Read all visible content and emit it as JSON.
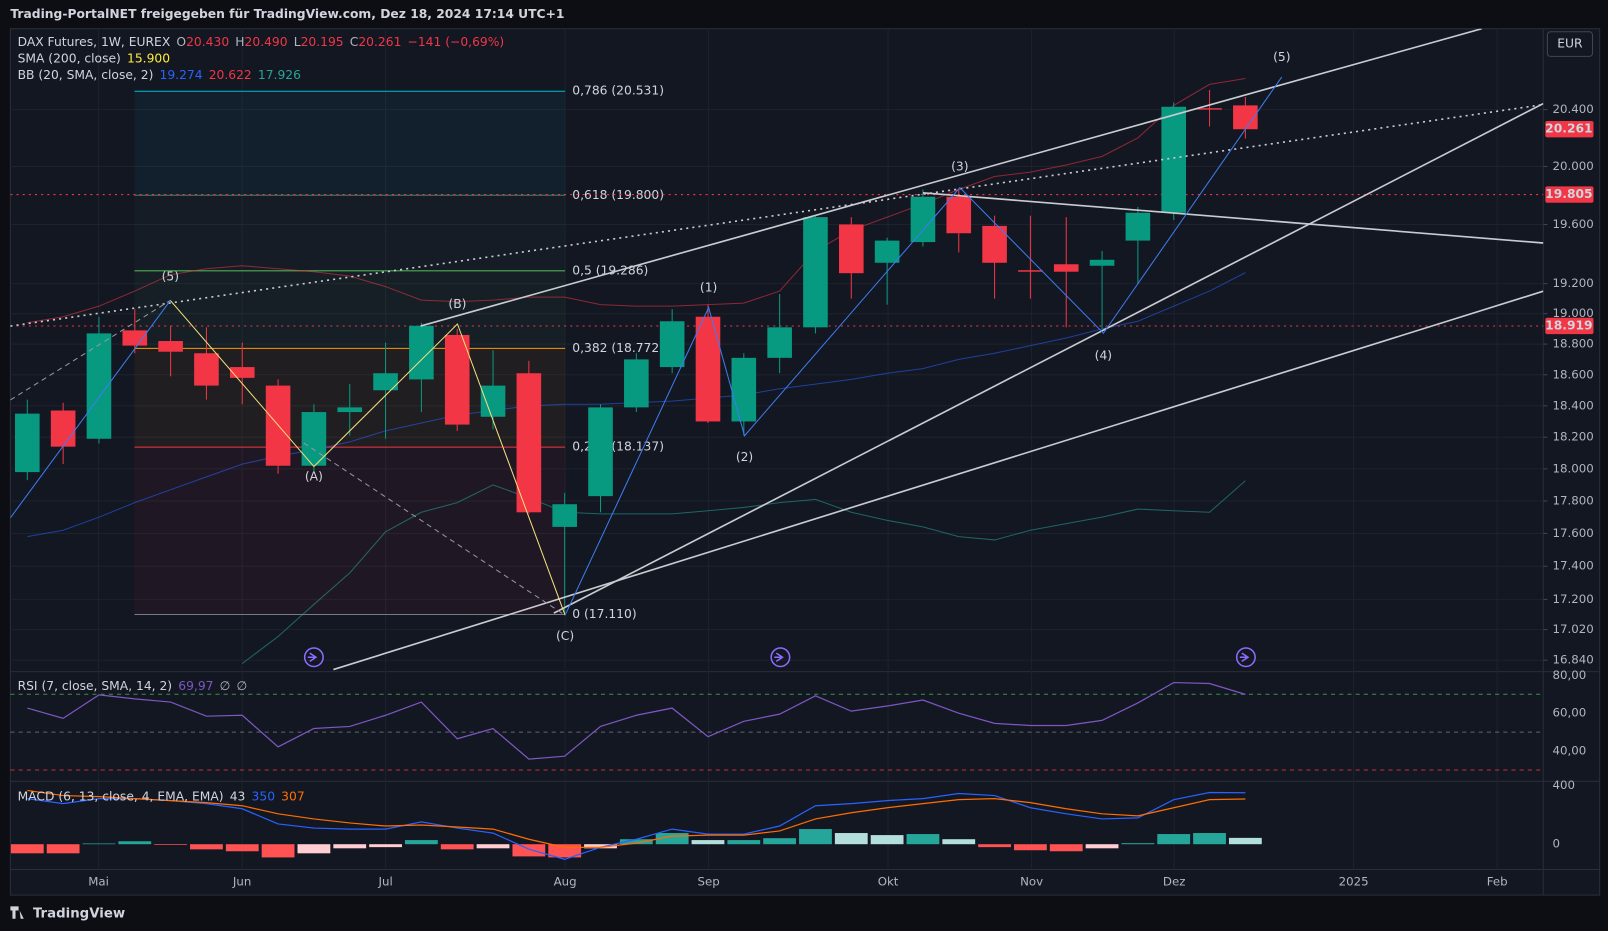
{
  "header": "Trading-PortalNET freigegeben für TradingView.com, Dez 18, 2024 17:14 UTC+1",
  "footer": "TradingView",
  "currency": "EUR",
  "chart_data": [
    {
      "type": "candlestick",
      "symbol": "DAX Futures, 1W, EUREX",
      "ohlc_keys": [
        "O",
        "H",
        "L",
        "C"
      ],
      "ohlc_labels": [
        "20.430",
        "20.490",
        "20.195",
        "20.261"
      ],
      "change": "−141 (−0,69%)",
      "up_color": "#089981",
      "down_color": "#f23645",
      "log_scale": true,
      "grid": true,
      "open": [
        17980,
        18370,
        18190,
        18890,
        18820,
        18740,
        18650,
        18530,
        18020,
        18360,
        18500,
        18570,
        18860,
        18330,
        18610,
        17640,
        17830,
        18390,
        18650,
        18980,
        18300,
        18710,
        18910,
        19600,
        19340,
        19480,
        19790,
        19590,
        19290,
        19330,
        19320,
        19490,
        19680,
        20410,
        20430
      ],
      "high": [
        18440,
        18420,
        18980,
        19030,
        18920,
        18910,
        18810,
        18570,
        18410,
        18540,
        18810,
        18940,
        18900,
        18760,
        18690,
        17850,
        18410,
        18740,
        19030,
        19060,
        18740,
        19130,
        19660,
        19650,
        19510,
        19840,
        19840,
        19660,
        19660,
        19650,
        19420,
        19720,
        20450,
        20540,
        20490
      ],
      "low": [
        17930,
        18030,
        18160,
        18740,
        18590,
        18440,
        18410,
        17970,
        17980,
        18210,
        18190,
        18360,
        18240,
        18250,
        17720,
        17110,
        17730,
        18360,
        18610,
        18290,
        18210,
        18610,
        18870,
        19100,
        19060,
        19450,
        19410,
        19100,
        19100,
        18910,
        18900,
        19200,
        19630,
        20280,
        20195
      ],
      "close": [
        18350,
        18140,
        18870,
        18790,
        18750,
        18530,
        18580,
        18020,
        18360,
        18390,
        18610,
        18920,
        18280,
        18530,
        17730,
        17780,
        18390,
        18700,
        18950,
        18300,
        18710,
        18910,
        19650,
        19270,
        19490,
        19790,
        19540,
        19340,
        19280,
        19280,
        19360,
        19680,
        20420,
        20400,
        20261
      ],
      "ylim": [
        16773,
        20953
      ],
      "yticks": [
        {
          "value": 20400,
          "label": "20.400"
        },
        {
          "value": 20000,
          "label": "20.000"
        },
        {
          "value": 19600,
          "label": "19.600"
        },
        {
          "value": 19200,
          "label": "19.200"
        },
        {
          "value": 19000,
          "label": "19.000"
        },
        {
          "value": 18800,
          "label": "18.800"
        },
        {
          "value": 18600,
          "label": "18.600"
        },
        {
          "value": 18400,
          "label": "18.400"
        },
        {
          "value": 18200,
          "label": "18.200"
        },
        {
          "value": 18000,
          "label": "18.000"
        },
        {
          "value": 17800,
          "label": "17.800"
        },
        {
          "value": 17600,
          "label": "17.600"
        },
        {
          "value": 17400,
          "label": "17.400"
        },
        {
          "value": 17200,
          "label": "17.200"
        },
        {
          "value": 17020,
          "label": "17.020"
        },
        {
          "value": 16840,
          "label": "16.840"
        }
      ],
      "xtick_labels": [
        "Mai",
        "Jun",
        "Jul",
        "Aug",
        "Sep",
        "Okt",
        "Nov",
        "Dez",
        "2025",
        "Feb"
      ],
      "sma": {
        "label": "SMA (200, close)",
        "value": {
          "value": 15900,
          "label": "15.900"
        },
        "color": "#ffeb3b"
      },
      "bb": {
        "label": "BB (20, SMA, close, 2)",
        "lines": [
          {
            "color": "#2962ff",
            "last_label": "19.274",
            "values": [
              17580,
              17620,
              17700,
              17790,
              17870,
              17950,
              18030,
              18080,
              18120,
              18170,
              18240,
              18290,
              18340,
              18370,
              18400,
              18410,
              18410,
              18420,
              18430,
              18450,
              18470,
              18510,
              18540,
              18570,
              18610,
              18640,
              18700,
              18740,
              18790,
              18840,
              18900,
              18950,
              19050,
              19150,
              19274
            ]
          },
          {
            "color": "#f23645",
            "last_label": "20.622",
            "values": [
              18940,
              18980,
              19050,
              19150,
              19260,
              19300,
              19320,
              19300,
              19280,
              19250,
              19180,
              19090,
              19080,
              19090,
              19110,
              19110,
              19060,
              19050,
              19050,
              19060,
              19070,
              19150,
              19420,
              19560,
              19650,
              19740,
              19840,
              19930,
              19960,
              20010,
              20070,
              20200,
              20430,
              20580,
              20622
            ]
          },
          {
            "color": "#26a69a",
            "last_label": "17.926",
            "values": [
              null,
              null,
              null,
              null,
              null,
              null,
              16820,
              16980,
              17170,
              17360,
              17610,
              17730,
              17790,
              17900,
              17820,
              17730,
              17720,
              17720,
              17720,
              17740,
              17760,
              17790,
              17810,
              17730,
              17680,
              17640,
              17580,
              17560,
              17620,
              17660,
              17700,
              17750,
              17740,
              17730,
              17926
            ]
          }
        ]
      },
      "fib": [
        {
          "label": "0,786 (20.531)",
          "value": 20531,
          "color": "#00bcd4"
        },
        {
          "label": "0,618 (19.800)",
          "value": 19800,
          "color": "#4d7c6a"
        },
        {
          "label": "0,5 (19.286)",
          "value": 19286,
          "color": "#4caf50"
        },
        {
          "label": "0,382 (18.772)",
          "value": 18772,
          "color": "#ff9800"
        },
        {
          "label": "0,236 (18.137)",
          "value": 18137,
          "color": "#f23645"
        },
        {
          "label": "0 (17.110)",
          "value": 17110,
          "color": "#787b86"
        }
      ],
      "price_lines": [
        {
          "value": 19805,
          "label": "19.805",
          "color": "#f23645"
        },
        {
          "value": 18919,
          "label": "18.919",
          "color": "#f23645"
        }
      ],
      "last_price": {
        "value": 20261,
        "label": "20.261",
        "color": "#f23645"
      },
      "waves": [
        {
          "label": "(5)",
          "color": "#5b9cf6"
        },
        {
          "label": "(B)",
          "color": "#f5e07c"
        },
        {
          "label": "(A)",
          "color": "#f5e07c"
        },
        {
          "label": "(C)",
          "color": "#f5e07c"
        },
        {
          "label": "(1)",
          "color": "#5b9cf6"
        },
        {
          "label": "(2)",
          "color": "#5b9cf6"
        },
        {
          "label": "(3)",
          "color": "#5b9cf6"
        },
        {
          "label": "(4)",
          "color": "#5b9cf6"
        },
        {
          "label": "(5)",
          "color": "#5b9cf6"
        }
      ]
    },
    {
      "type": "line",
      "label": "RSI (7, close, SMA, 14, 2)",
      "last_label": "69,97",
      "na_labels": [
        "∅",
        "∅"
      ],
      "color": "#7e57c2",
      "values": [
        62.7,
        57.3,
        69.7,
        67.6,
        65.9,
        58.4,
        58.9,
        42.2,
        51.9,
        53.0,
        58.9,
        65.9,
        46.5,
        51.9,
        35.7,
        37.3,
        53.0,
        58.9,
        62.7,
        47.6,
        55.7,
        59.5,
        69.2,
        61.1,
        63.8,
        67.0,
        60.0,
        54.6,
        53.5,
        53.5,
        56.2,
        65.4,
        76.2,
        75.7,
        69.97
      ],
      "ylim": [
        24,
        82
      ],
      "yticks": [
        {
          "value": 80,
          "label": "80,00"
        },
        {
          "value": 60,
          "label": "60,00"
        },
        {
          "value": 40,
          "label": "40,00"
        }
      ],
      "levels": [
        {
          "value": 70,
          "color": "#4caf50"
        },
        {
          "value": 50,
          "color": "#787b86"
        },
        {
          "value": 30,
          "color": "#f23645"
        }
      ]
    },
    {
      "type": "macd",
      "label": "MACD (6, 13, close, 4, EMA, EMA)",
      "hist_colors": [
        "#26a69a",
        "#b2dfdb",
        "#ff5252",
        "#ffcdd2"
      ],
      "macd_color": "#2962ff",
      "signal_color": "#ff6d00",
      "histogram": [
        -62,
        -62,
        5,
        20,
        -5,
        -35,
        -48,
        -90,
        -62,
        -28,
        -20,
        28,
        -35,
        -28,
        -83,
        -90,
        -28,
        34,
        76,
        28,
        28,
        41,
        103,
        76,
        62,
        69,
        34,
        -20,
        -41,
        -48,
        -28,
        7,
        69,
        76,
        43
      ],
      "macd": [
        310,
        276,
        310,
        310,
        297,
        276,
        241,
        138,
        110,
        103,
        103,
        152,
        110,
        76,
        -34,
        -103,
        -21,
        34,
        103,
        69,
        69,
        124,
        262,
        276,
        297,
        310,
        345,
        331,
        248,
        207,
        172,
        179,
        303,
        352,
        350
      ],
      "signal": [
        366,
        331,
        324,
        310,
        297,
        283,
        262,
        207,
        172,
        145,
        124,
        131,
        117,
        103,
        34,
        -21,
        -21,
        7,
        55,
        62,
        62,
        90,
        172,
        214,
        248,
        276,
        303,
        310,
        283,
        241,
        207,
        193,
        248,
        303,
        307
      ],
      "ylim": [
        -172,
        421
      ],
      "yticks": [
        400,
        0
      ]
    }
  ]
}
